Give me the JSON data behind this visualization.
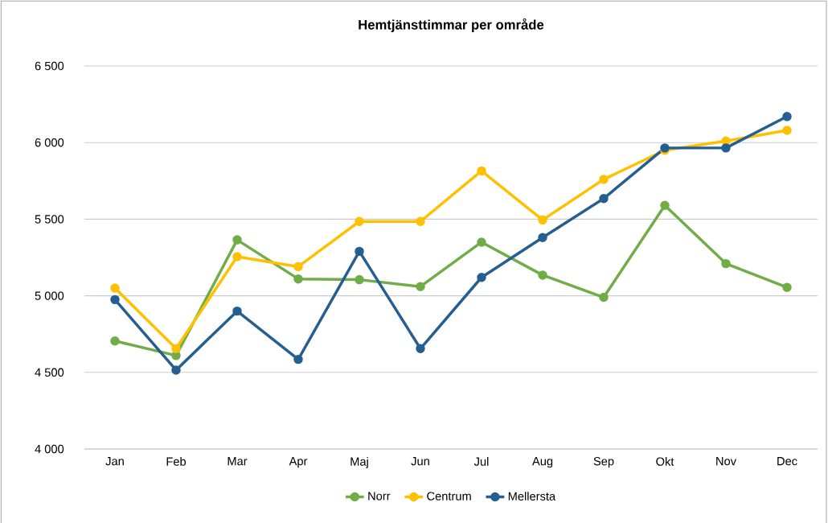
{
  "chart_data": {
    "type": "line",
    "title": "Hemtjänsttimmar  per område",
    "categories": [
      "Jan",
      "Feb",
      "Mar",
      "Apr",
      "Maj",
      "Jun",
      "Jul",
      "Aug",
      "Sep",
      "Okt",
      "Nov",
      "Dec"
    ],
    "series": [
      {
        "name": "Norr",
        "color": "#70ad47",
        "values": [
          4705,
          4610,
          5365,
          5110,
          5105,
          5060,
          5350,
          5135,
          4990,
          5590,
          5210,
          5055
        ]
      },
      {
        "name": "Centrum",
        "color": "#ffc000",
        "values": [
          5050,
          4655,
          5255,
          5190,
          5485,
          5485,
          5815,
          5495,
          5760,
          5950,
          6010,
          6080
        ]
      },
      {
        "name": "Mellersta",
        "color": "#255e91",
        "values": [
          4975,
          4515,
          4900,
          4585,
          5290,
          4655,
          5120,
          5380,
          5635,
          5965,
          5965,
          6170
        ]
      }
    ],
    "ylim": [
      4000,
      6500
    ],
    "yticks": [
      {
        "value": 4000,
        "label": "4 000"
      },
      {
        "value": 4500,
        "label": "4 500"
      },
      {
        "value": 5000,
        "label": "5 000"
      },
      {
        "value": 5500,
        "label": "5 500"
      },
      {
        "value": 6000,
        "label": "6 000"
      },
      {
        "value": 6500,
        "label": "6 500"
      }
    ],
    "grid": "y",
    "legend": "bottom",
    "marker": "circle",
    "line_style": "solid"
  }
}
